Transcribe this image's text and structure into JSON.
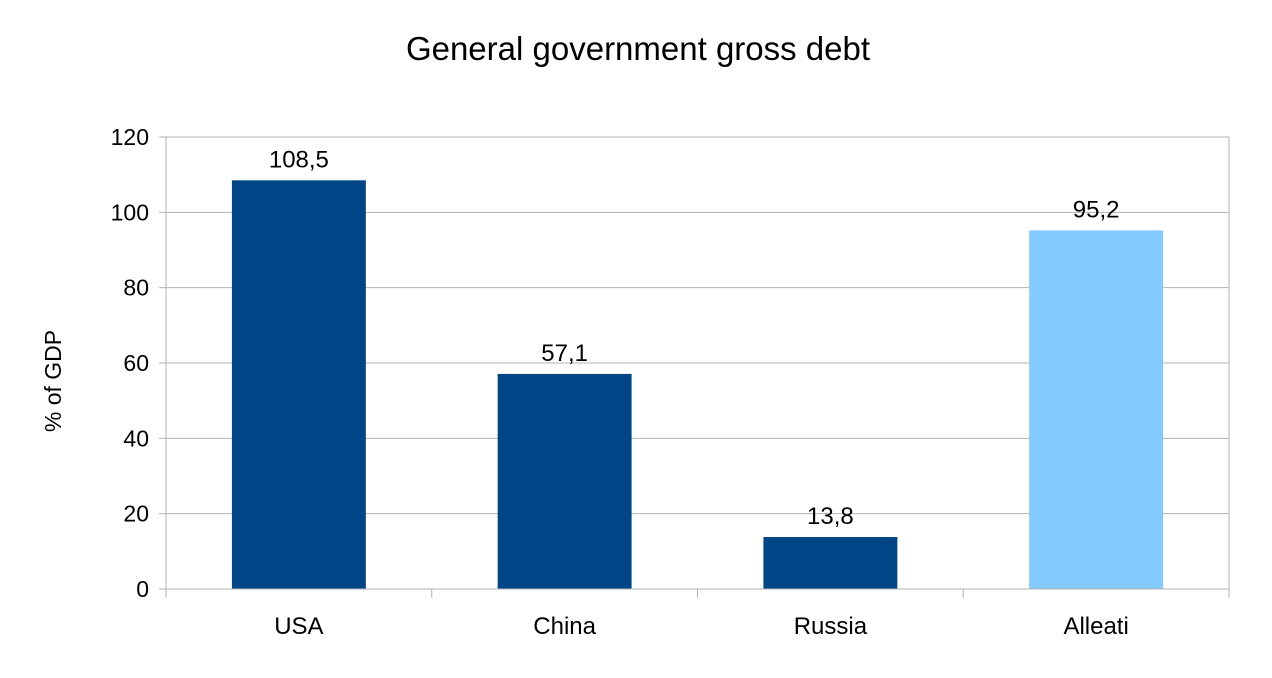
{
  "chart_data": {
    "type": "bar",
    "title": "General government gross debt",
    "xlabel": "",
    "ylabel": "% of GDP",
    "categories": [
      "USA",
      "China",
      "Russia",
      "Alleati"
    ],
    "values": [
      108.5,
      57.1,
      13.8,
      95.2
    ],
    "data_labels": [
      "108,5",
      "57,1",
      "13,8",
      "95,2"
    ],
    "bar_colors": [
      "#004586",
      "#004586",
      "#004586",
      "#83caff"
    ],
    "ylim": [
      0,
      120
    ],
    "yticks": [
      0,
      20,
      40,
      60,
      80,
      100,
      120
    ],
    "grid": true,
    "legend": "none"
  }
}
